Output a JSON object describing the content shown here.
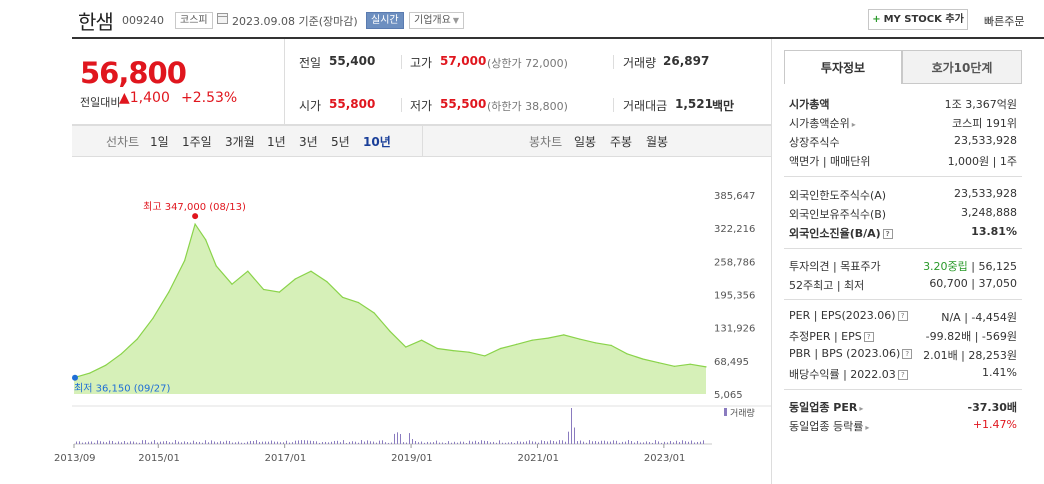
{
  "header": {
    "name": "한샘",
    "code": "009240",
    "market": "코스피",
    "date": "2023.09.08 기준(장마감)",
    "realtime": "실시간",
    "company_overview": "기업개요",
    "my_stock_plus": "+",
    "my_stock": "MY STOCK 추가",
    "quick_order": "빠른주문"
  },
  "price": {
    "current": "56,800",
    "prev_label": "전일대비",
    "change_abs": "▲1,400",
    "change_pct": "+2.53%"
  },
  "quote": {
    "prev_close_label": "전일",
    "prev_close": "55,400",
    "high_label": "고가",
    "high": "57,000",
    "high_limit": "(상한가 72,000)",
    "volume_label": "거래량",
    "volume": "26,897",
    "open_label": "시가",
    "open": "55,800",
    "low_label": "저가",
    "low": "55,500",
    "low_limit": "(하한가 38,800)",
    "value_label": "거래대금",
    "value": "1,521",
    "value_unit": "백만"
  },
  "chart_tabs": {
    "line_label": "선차트",
    "line_periods": [
      "1일",
      "1주일",
      "3개월",
      "1년",
      "3년",
      "5년",
      "10년"
    ],
    "active_period": "10년",
    "candle_label": "봉차트",
    "candle_periods": [
      "일봉",
      "주봉",
      "월봉"
    ]
  },
  "chart_data": {
    "type": "area",
    "color": "#8ad34a",
    "fill": "#d6f0b8",
    "y_ticks": [
      "385,647",
      "322,216",
      "258,786",
      "195,356",
      "131,926",
      "68,495",
      "5,065"
    ],
    "ylim": [
      5065,
      385647
    ],
    "x_ticks": [
      "2013/09",
      "2015/01",
      "2017/01",
      "2019/01",
      "2021/01",
      "2023/01"
    ],
    "max_label": "최고 347,000 (08/13)",
    "min_label": "최저 36,150 (09/27)",
    "volume_label": "거래량",
    "x": [
      "2013/09",
      "2013/12",
      "2014/03",
      "2014/06",
      "2014/09",
      "2014/12",
      "2015/03",
      "2015/06",
      "2015/08",
      "2015/10",
      "2015/12",
      "2016/03",
      "2016/06",
      "2016/09",
      "2016/12",
      "2017/03",
      "2017/06",
      "2017/09",
      "2017/12",
      "2018/03",
      "2018/06",
      "2018/09",
      "2018/12",
      "2019/03",
      "2019/06",
      "2019/09",
      "2019/12",
      "2020/03",
      "2020/06",
      "2020/09",
      "2020/12",
      "2021/03",
      "2021/06",
      "2021/09",
      "2021/12",
      "2022/03",
      "2022/06",
      "2022/09",
      "2022/12",
      "2023/03",
      "2023/06",
      "2023/09"
    ],
    "values": [
      36150,
      45000,
      60000,
      82000,
      110000,
      150000,
      200000,
      260000,
      330000,
      300000,
      250000,
      215000,
      240000,
      205000,
      200000,
      225000,
      240000,
      220000,
      190000,
      180000,
      160000,
      125000,
      95000,
      108000,
      92000,
      88000,
      85000,
      78000,
      92000,
      100000,
      108000,
      112000,
      118000,
      110000,
      103000,
      98000,
      82000,
      72000,
      65000,
      58000,
      62000,
      56800
    ]
  },
  "right_panel": {
    "tab_invest": "투자정보",
    "tab_hoga": "호가10단계",
    "market_cap_label": "시가총액",
    "market_cap": "1조 3,367억원",
    "market_cap_rank_label": "시가총액순위",
    "market_cap_rank": "코스피 191위",
    "shares_label": "상장주식수",
    "shares": "23,533,928",
    "par_label": "액면가 | 매매단위",
    "par": "1,000원 | 1주",
    "foreign_limit_label": "외국인한도주식수(A)",
    "foreign_limit": "23,533,928",
    "foreign_hold_label": "외국인보유주식수(B)",
    "foreign_hold": "3,248,888",
    "foreign_ratio_label": "외국인소진율(B/A)",
    "foreign_ratio": "13.81%",
    "opinion_label": "투자의견 | 목표주가",
    "opinion": "3.20중립",
    "target": "| 56,125",
    "week52_label": "52주최고 | 최저",
    "week52": "60,700 | 37,050",
    "per_label": "PER | EPS(2023.06)",
    "per": "N/A | -4,454원",
    "est_per_label": "추정PER | EPS",
    "est_per": "-99.82배 | -569원",
    "pbr_label": "PBR | BPS (2023.06)",
    "pbr": "2.01배 | 28,253원",
    "div_label": "배당수익률 | 2022.03",
    "div": "1.41%",
    "sector_per_label": "동일업종 PER",
    "sector_per": "-37.30배",
    "sector_rate_label": "동일업종 등락률",
    "sector_rate": "+1.47%"
  }
}
